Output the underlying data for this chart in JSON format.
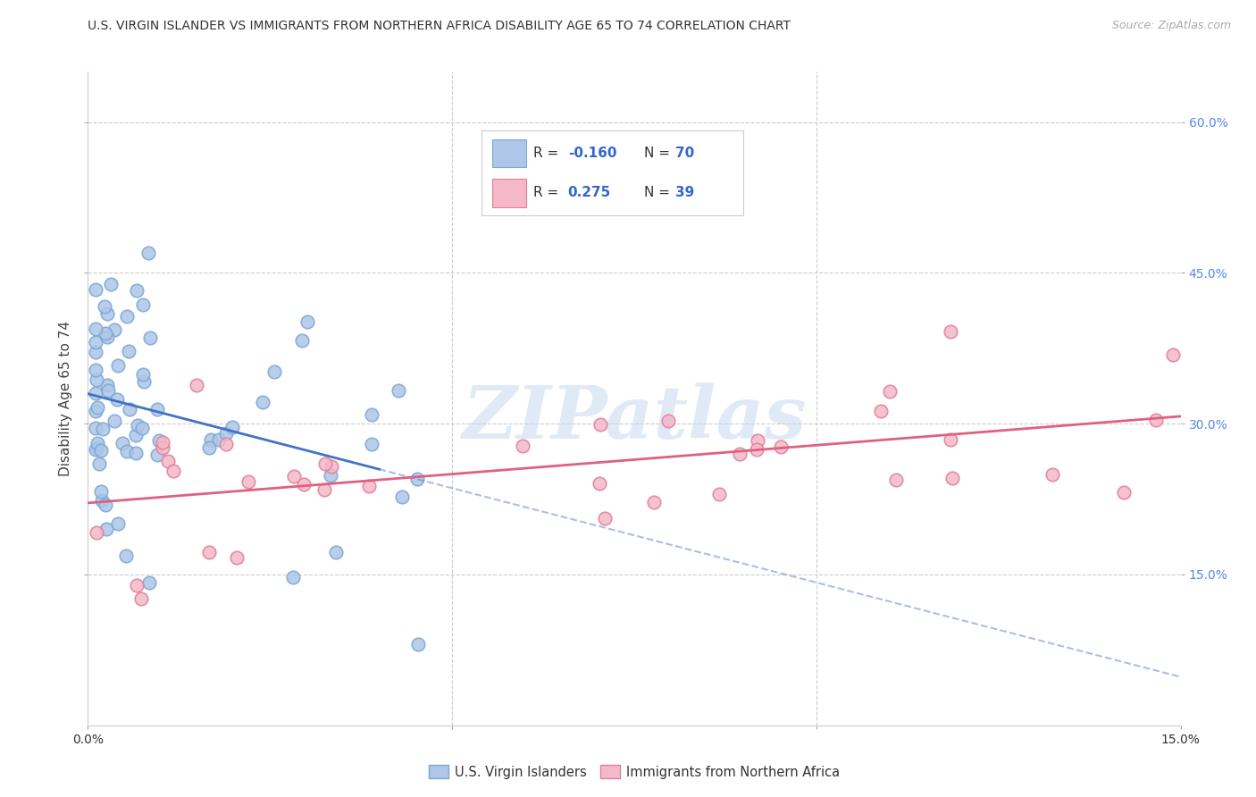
{
  "title": "U.S. VIRGIN ISLANDER VS IMMIGRANTS FROM NORTHERN AFRICA DISABILITY AGE 65 TO 74 CORRELATION CHART",
  "source": "Source: ZipAtlas.com",
  "ylabel": "Disability Age 65 to 74",
  "xlim": [
    0.0,
    0.15
  ],
  "ylim": [
    0.0,
    0.65
  ],
  "r_blue": -0.16,
  "n_blue": 70,
  "r_pink": 0.275,
  "n_pink": 39,
  "legend_label_blue": "U.S. Virgin Islanders",
  "legend_label_pink": "Immigrants from Northern Africa",
  "blue_color": "#aec6e8",
  "blue_edge_color": "#7aa8d4",
  "blue_line_color": "#4472c4",
  "pink_color": "#f4b8c8",
  "pink_edge_color": "#e08098",
  "pink_line_color": "#e06080",
  "background_color": "#ffffff",
  "grid_color": "#cccccc",
  "watermark_text": "ZIPatlas",
  "watermark_color": "#c8daf0",
  "right_tick_color": "#5588ee"
}
